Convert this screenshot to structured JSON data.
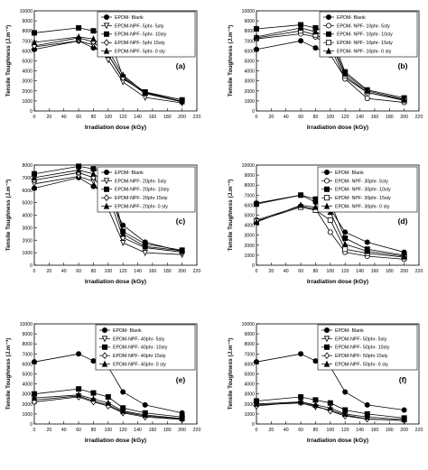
{
  "chart_data": [
    {
      "type": "line",
      "panel_label": "(a)",
      "xlabel": "Irradiation dose (kGy)",
      "ylabel": "Tensile Toughness (J.m⁻³)",
      "xlim": [
        0,
        220
      ],
      "ylim": [
        0,
        10000
      ],
      "xticks": [
        "0",
        "20",
        "40",
        "60",
        "80",
        "100",
        "120",
        "140",
        "160",
        "180",
        "200",
        "220"
      ],
      "yticks": [
        "0",
        "1000",
        "2000",
        "3000",
        "4000",
        "5000",
        "6000",
        "7000",
        "8000",
        "9000",
        "10000"
      ],
      "legend_position": "top-right",
      "grid": false,
      "x": [
        0,
        60,
        80,
        100,
        120,
        150,
        200
      ],
      "series": [
        {
          "name": "EPDM- Blank",
          "marker": "filled-circle",
          "values": [
            6150,
            7000,
            6300,
            5600,
            3200,
            1850,
            1100
          ]
        },
        {
          "name": "EPDM-NPF- 5phr- 5sty",
          "marker": "open-triangle-down",
          "values": [
            6400,
            7000,
            6600,
            5100,
            2900,
            1350,
            800
          ]
        },
        {
          "name": "EPDM-NPF- 5phr- 10sty",
          "marker": "filled-square",
          "values": [
            7800,
            8300,
            8000,
            7600,
            3400,
            1900,
            1100
          ]
        },
        {
          "name": "EPDM-NPF- 5phr 15sty",
          "marker": "open-diamond",
          "values": [
            6500,
            7300,
            6900,
            5600,
            3300,
            1750,
            900
          ]
        },
        {
          "name": "EPDM-NPF- 5phr- 0 sty",
          "marker": "filled-triangle-up",
          "values": [
            6850,
            7400,
            7200,
            6000,
            3600,
            1800,
            950
          ]
        }
      ]
    },
    {
      "type": "line",
      "panel_label": "(b)",
      "xlabel": "Irradiation dose (kGy)",
      "ylabel": "Tensile Toughness (J.m⁻³)",
      "xlim": [
        0,
        220
      ],
      "ylim": [
        0,
        10000
      ],
      "xticks": [
        "0",
        "20",
        "40",
        "60",
        "80",
        "100",
        "120",
        "140",
        "160",
        "180",
        "200",
        "220"
      ],
      "yticks": [
        "0",
        "1000",
        "2000",
        "3000",
        "4000",
        "5000",
        "6000",
        "7000",
        "8000",
        "9000",
        "10000"
      ],
      "legend_position": "top-right",
      "grid": false,
      "x": [
        0,
        60,
        80,
        100,
        120,
        150,
        200
      ],
      "series": [
        {
          "name": "EPDM- Blank",
          "marker": "filled-circle",
          "values": [
            6150,
            7000,
            6300,
            5600,
            3300,
            1850,
            1100
          ]
        },
        {
          "name": "EPDM- NPF- 10phr- 5sty",
          "marker": "open-circle",
          "values": [
            7200,
            7700,
            7400,
            6400,
            3200,
            1250,
            850
          ]
        },
        {
          "name": "EPDM- NPF- 10phr- 10sty",
          "marker": "filled-square",
          "values": [
            8200,
            8600,
            8300,
            7800,
            3900,
            2100,
            1300
          ]
        },
        {
          "name": "EPDM- NPF- 10phr- 15sty",
          "marker": "open-square",
          "values": [
            7300,
            8000,
            7600,
            6900,
            3500,
            1850,
            1050
          ]
        },
        {
          "name": "EPDM- NPF- 10phr- 0 sty",
          "marker": "filled-triangle-up",
          "values": [
            7400,
            8300,
            7900,
            7200,
            3700,
            2000,
            1150
          ]
        }
      ]
    },
    {
      "type": "line",
      "panel_label": "(c)",
      "xlabel": "Irradiation dose (kGy)",
      "ylabel": "Tensile Toughness (J.m⁻³)",
      "xlim": [
        0,
        220
      ],
      "ylim": [
        0,
        8000
      ],
      "xticks": [
        "0",
        "20",
        "40",
        "60",
        "80",
        "100",
        "120",
        "140",
        "160",
        "180",
        "200",
        "220"
      ],
      "yticks": [
        "0",
        "1000",
        "2000",
        "3000",
        "4000",
        "5000",
        "6000",
        "7000",
        "8000"
      ],
      "legend_position": "top-right",
      "grid": false,
      "x": [
        0,
        60,
        80,
        100,
        120,
        150,
        200
      ],
      "series": [
        {
          "name": "EPDM- Blank",
          "marker": "filled-circle",
          "values": [
            6150,
            7000,
            6300,
            5600,
            3200,
            1850,
            1100
          ]
        },
        {
          "name": "EPDM-NPF- 20phr- 5sty",
          "marker": "open-triangle-down",
          "values": [
            6500,
            7100,
            6700,
            4500,
            1800,
            1000,
            850
          ]
        },
        {
          "name": "EPDM-NPF- 20phr- 10sty",
          "marker": "filled-square",
          "values": [
            7300,
            7900,
            7700,
            7400,
            2700,
            1700,
            1200
          ]
        },
        {
          "name": "EPDM-NPF- 20phr 15sty",
          "marker": "open-diamond",
          "values": [
            6800,
            7400,
            7000,
            5600,
            2200,
            1400,
            1050
          ]
        },
        {
          "name": "EPDM-NPF- 20phr- 0 sty",
          "marker": "filled-triangle-up",
          "values": [
            7000,
            7600,
            7300,
            6500,
            2500,
            1500,
            1150
          ]
        }
      ]
    },
    {
      "type": "line",
      "panel_label": "(d)",
      "xlabel": "Irradiation dose (kGy)",
      "ylabel": "Tensile Toughness (J.m⁻³)",
      "xlim": [
        0,
        220
      ],
      "ylim": [
        0,
        10000
      ],
      "xticks": [
        "0",
        "20",
        "40",
        "60",
        "80",
        "100",
        "120",
        "140",
        "160",
        "180",
        "200",
        "220"
      ],
      "yticks": [
        "0",
        "1000",
        "2000",
        "3000",
        "4000",
        "5000",
        "6000",
        "7000",
        "8000",
        "9000",
        "10000"
      ],
      "legend_position": "top-right",
      "grid": false,
      "x": [
        0,
        60,
        80,
        100,
        120,
        150,
        200
      ],
      "series": [
        {
          "name": "EPDM- Blank",
          "marker": "filled-circle",
          "values": [
            6200,
            7000,
            6300,
            5600,
            3300,
            2300,
            1300
          ]
        },
        {
          "name": "EPDM- NPF- 30phr- 5sty",
          "marker": "open-circle",
          "values": [
            4500,
            5900,
            5600,
            3300,
            1300,
            900,
            600
          ]
        },
        {
          "name": "EPDM- NPF- 30phr- 10sty",
          "marker": "filled-square",
          "values": [
            6100,
            7000,
            6600,
            6300,
            2700,
            1600,
            1000
          ]
        },
        {
          "name": "EPDM- NPF- 30phr- 15sty",
          "marker": "open-square",
          "values": [
            4400,
            5800,
            5500,
            4500,
            1600,
            1200,
            800
          ]
        },
        {
          "name": "EPDM- NPF- 30phr- 0 sty",
          "marker": "filled-triangle-up",
          "values": [
            4300,
            6000,
            5800,
            5300,
            2100,
            1400,
            900
          ]
        }
      ]
    },
    {
      "type": "line",
      "panel_label": "(e)",
      "xlabel": "Irradiation dose (kGy)",
      "ylabel": "Tensile Toughness (J.m⁻³)",
      "xlim": [
        0,
        220
      ],
      "ylim": [
        0,
        10000
      ],
      "xticks": [
        "0",
        "20",
        "40",
        "60",
        "80",
        "100",
        "120",
        "140",
        "160",
        "180",
        "200",
        "220"
      ],
      "yticks": [
        "0",
        "1000",
        "2000",
        "3000",
        "4000",
        "5000",
        "6000",
        "7000",
        "8000",
        "9000",
        "10000"
      ],
      "legend_position": "top-right",
      "grid": false,
      "x": [
        0,
        60,
        80,
        100,
        120,
        150,
        200
      ],
      "series": [
        {
          "name": "EPDM- Blank",
          "marker": "filled-circle",
          "values": [
            6200,
            7000,
            6300,
            5700,
            3200,
            1900,
            1100
          ]
        },
        {
          "name": "EPDM-NPF- 40phr- 5sty",
          "marker": "open-triangle-down",
          "values": [
            2400,
            2800,
            2300,
            1900,
            1200,
            800,
            500
          ]
        },
        {
          "name": "EPDM-NPF- 40phr- 10sty",
          "marker": "filled-square",
          "values": [
            3000,
            3500,
            3100,
            2700,
            1600,
            1100,
            700
          ]
        },
        {
          "name": "EPDM-NPF- 40phr 15sty",
          "marker": "open-diamond",
          "values": [
            2200,
            2700,
            2200,
            1800,
            1100,
            700,
            450
          ]
        },
        {
          "name": "EPDM-NPF- 40phr- 0 sty",
          "marker": "filled-triangle-up",
          "values": [
            2600,
            2900,
            2500,
            2100,
            1300,
            900,
            550
          ]
        }
      ]
    },
    {
      "type": "line",
      "panel_label": "(f)",
      "xlabel": "Irradiation dose (kGy)",
      "ylabel": "Tensile Toughness (J.m⁻³)",
      "xlim": [
        0,
        220
      ],
      "ylim": [
        0,
        10000
      ],
      "xticks": [
        "0",
        "20",
        "40",
        "60",
        "80",
        "100",
        "120",
        "140",
        "160",
        "180",
        "200",
        "220"
      ],
      "yticks": [
        "0",
        "1000",
        "2000",
        "3000",
        "4000",
        "5000",
        "6000",
        "7000",
        "8000",
        "9000",
        "10000"
      ],
      "legend_position": "top-right",
      "grid": false,
      "x": [
        0,
        60,
        80,
        100,
        120,
        150,
        200
      ],
      "series": [
        {
          "name": "EPDM- Blank",
          "marker": "filled-circle",
          "values": [
            6200,
            7000,
            6300,
            5700,
            3200,
            1900,
            1400
          ]
        },
        {
          "name": "EPDM-NPF- 50phr- 5sty",
          "marker": "open-triangle-down",
          "values": [
            1900,
            2100,
            1700,
            1400,
            900,
            500,
            350
          ]
        },
        {
          "name": "EPDM-NPF- 50phr- 10sty",
          "marker": "filled-square",
          "values": [
            2300,
            2700,
            2400,
            2100,
            1400,
            1000,
            600
          ]
        },
        {
          "name": "EPDM-NPF- 50phr 15sty",
          "marker": "open-diamond",
          "values": [
            1800,
            2200,
            1800,
            1300,
            800,
            500,
            350
          ]
        },
        {
          "name": "EPDM-NPF- 50phr- 0 sty",
          "marker": "filled-triangle-up",
          "values": [
            2000,
            2200,
            1900,
            1600,
            1000,
            700,
            450
          ]
        }
      ]
    }
  ]
}
